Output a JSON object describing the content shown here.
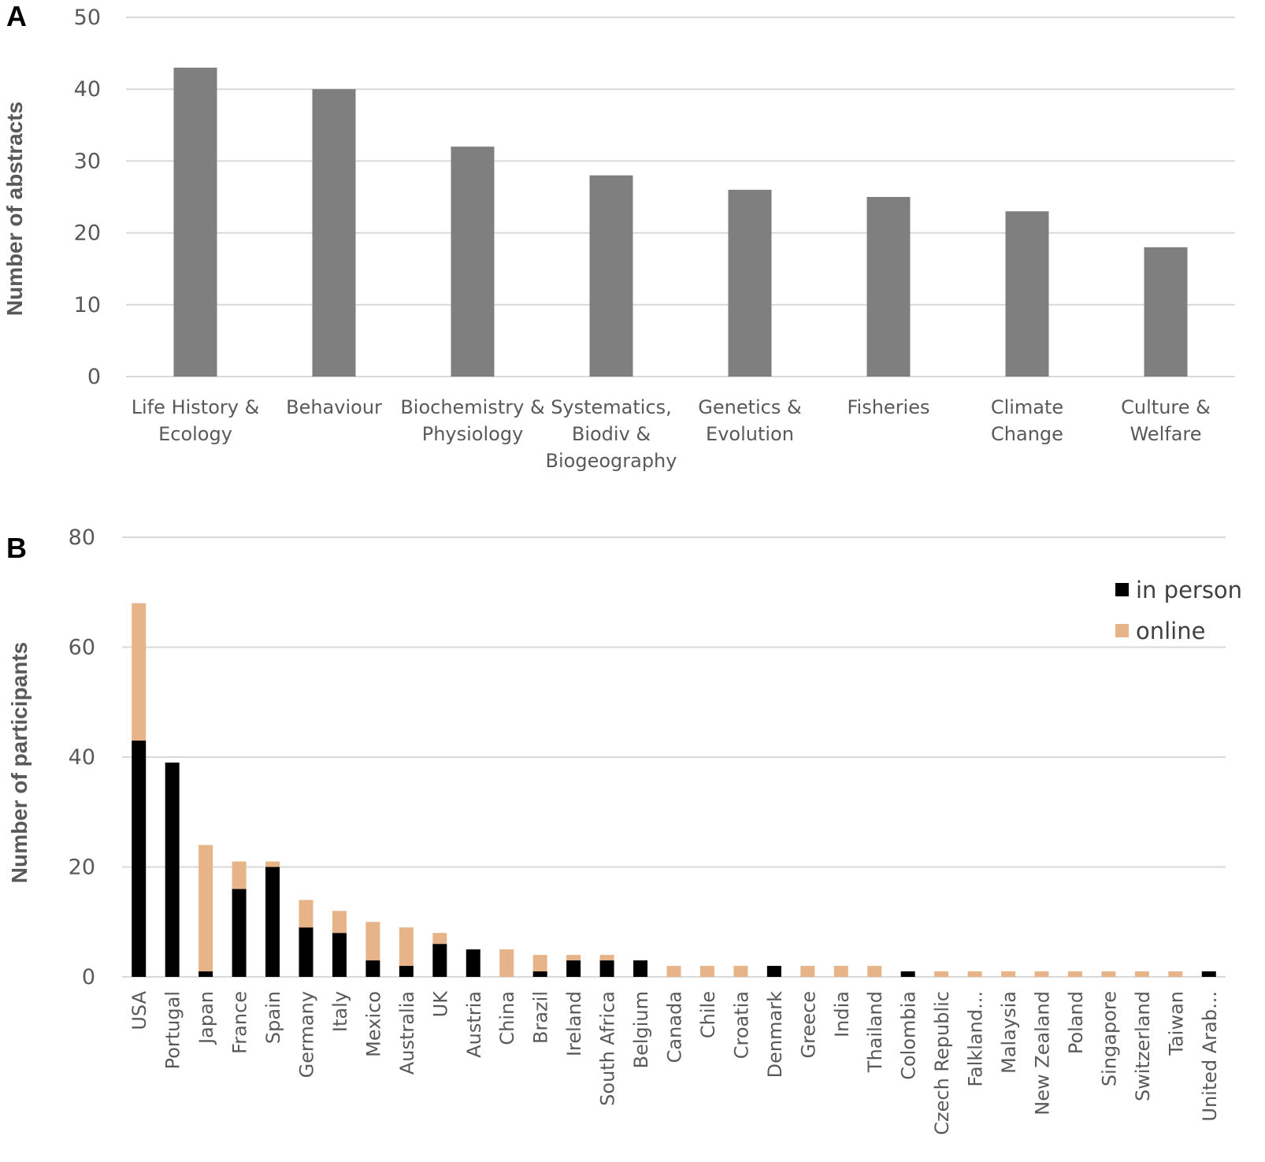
{
  "chart_data": [
    {
      "panel": "A",
      "type": "bar",
      "title": "",
      "xlabel": "",
      "ylabel": "Number of abstracts",
      "ylim": [
        0,
        50
      ],
      "yticks": [
        0,
        10,
        20,
        30,
        40,
        50
      ],
      "grid": true,
      "categories": [
        [
          "Life History &",
          "Ecology"
        ],
        [
          "Behaviour"
        ],
        [
          "Biochemistry &",
          "Physiology"
        ],
        [
          "Systematics,",
          "Biodiv &",
          "Biogeography"
        ],
        [
          "Genetics &",
          "Evolution"
        ],
        [
          "Fisheries"
        ],
        [
          "Climate",
          "Change"
        ],
        [
          "Culture &",
          "Welfare"
        ]
      ],
      "values": [
        43,
        40,
        32,
        28,
        26,
        25,
        23,
        18
      ],
      "color": "#7f7f7f"
    },
    {
      "panel": "B",
      "type": "bar",
      "stacked": true,
      "title": "",
      "xlabel": "",
      "ylabel": "Number of participants",
      "ylim": [
        0,
        80
      ],
      "yticks": [
        0,
        20,
        40,
        60,
        80
      ],
      "grid": true,
      "legend_position": "top-right",
      "categories": [
        "USA",
        "Portugal",
        "Japan",
        "France",
        "Spain",
        "Germany",
        "Italy",
        "Mexico",
        "Australia",
        "UK",
        "Austria",
        "China",
        "Brazil",
        "Ireland",
        "South Africa",
        "Belgium",
        "Canada",
        "Chile",
        "Croatia",
        "Denmark",
        "Greece",
        "India",
        "Thailand",
        "Colombia",
        "Czech Republic",
        "Falkland...",
        "Malaysia",
        "New Zealand",
        "Poland",
        "Singapore",
        "Switzerland",
        "Taiwan",
        "United Arab..."
      ],
      "series": [
        {
          "name": "in person",
          "color": "#000000",
          "values": [
            43,
            39,
            1,
            16,
            20,
            9,
            8,
            3,
            2,
            6,
            5,
            0,
            1,
            3,
            3,
            3,
            0,
            0,
            0,
            2,
            0,
            0,
            0,
            1,
            0,
            0,
            0,
            0,
            0,
            0,
            0,
            0,
            1
          ]
        },
        {
          "name": "online",
          "color": "#e6b488",
          "values": [
            25,
            0,
            23,
            5,
            1,
            5,
            4,
            7,
            7,
            2,
            0,
            5,
            3,
            1,
            1,
            0,
            2,
            2,
            2,
            0,
            2,
            2,
            2,
            0,
            1,
            1,
            1,
            1,
            1,
            1,
            1,
            1,
            0
          ]
        }
      ]
    }
  ]
}
